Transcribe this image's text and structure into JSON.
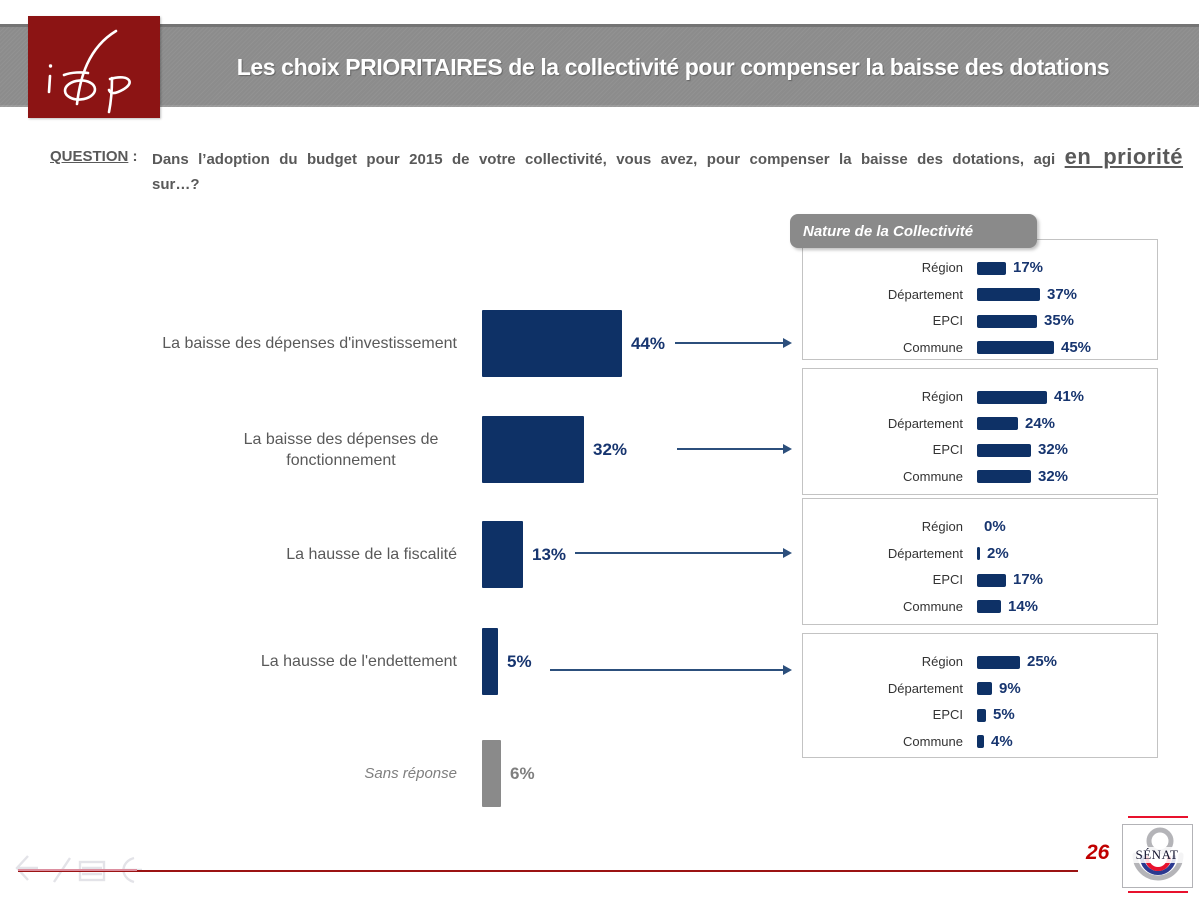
{
  "header": {
    "logo_text": "ifop",
    "title": "Les choix PRIORITAIRES de la collectivité pour compenser la baisse des dotations"
  },
  "question": {
    "label": "QUESTION",
    "colon": " :",
    "text": "Dans l’adoption du budget pour 2015 de votre collectivité, vous avez, pour compenser la baisse des dotations, agi",
    "emphasis": "en priorité",
    "tail": "sur…?"
  },
  "chart_data": {
    "type": "bar",
    "orientation": "horizontal",
    "unit": "%",
    "palette": {
      "navy": "#0e3166",
      "navy_text": "#17356f",
      "gray": "#8a8a8a",
      "gray_text": "#7f7f7f",
      "arrow": "#2c4f7c",
      "ifop_red": "#8c1414",
      "banner_gray": "#8c8c8c",
      "footer_red": "#9b1313",
      "page_red": "#c00000",
      "senat_red": "#e8112d",
      "senat_blue": "#2b3990"
    },
    "main": {
      "title": "",
      "xlim": [
        0,
        50
      ],
      "rows": [
        {
          "label": "La baisse des dépenses d'investissement",
          "value": 44,
          "display": "44%",
          "tone": "navy"
        },
        {
          "label": "La baisse des dépenses de fonctionnement",
          "value": 32,
          "display": "32%",
          "tone": "navy"
        },
        {
          "label": "La hausse de la fiscalité",
          "value": 13,
          "display": "13%",
          "tone": "navy"
        },
        {
          "label": "La hausse de l'endettement",
          "value": 5,
          "display": "5%",
          "tone": "navy"
        },
        {
          "label": "Sans réponse",
          "value": 6,
          "display": "6%",
          "tone": "gray"
        }
      ]
    },
    "breakdown_title": "Nature de la Collectivité",
    "breakdown_categories": [
      "Région",
      "Département",
      "EPCI",
      "Commune"
    ],
    "breakdown": [
      {
        "for": "La baisse des dépenses d'investissement",
        "values": [
          17,
          37,
          35,
          45
        ],
        "displays": [
          "17%",
          "37%",
          "35%",
          "45%"
        ]
      },
      {
        "for": "La baisse des dépenses de fonctionnement",
        "values": [
          41,
          24,
          32,
          32
        ],
        "displays": [
          "41%",
          "24%",
          "32%",
          "32%"
        ]
      },
      {
        "for": "La hausse de la fiscalité",
        "values": [
          0,
          2,
          17,
          14
        ],
        "displays": [
          "0%",
          "2%",
          "17%",
          "14%"
        ]
      },
      {
        "for": "La hausse de l'endettement",
        "values": [
          25,
          9,
          5,
          4
        ],
        "displays": [
          "25%",
          "9%",
          "5%",
          "4%"
        ]
      }
    ]
  },
  "footer": {
    "page_number": "26",
    "senat_label": "SÉNAT"
  }
}
